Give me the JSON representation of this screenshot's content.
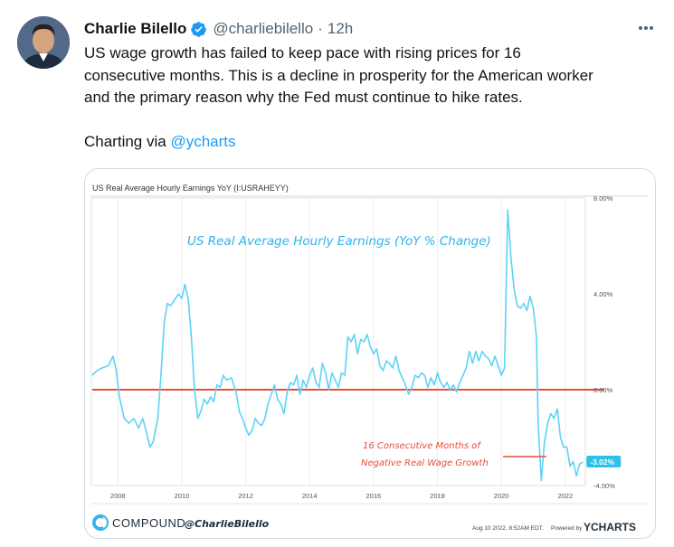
{
  "author": {
    "name": "Charlie Bilello",
    "handle": "@charliebilello",
    "separator": "·",
    "time": "12h"
  },
  "tweet": {
    "lines": [
      "US wage growth has failed to keep pace with rising prices for 16",
      "consecutive months. This is a decline in prosperity for the American worker",
      "and the primary reason why the Fed must continue to hike rates."
    ],
    "via_prefix": "Charting via ",
    "via_mention": "@ycharts"
  },
  "chart_data": {
    "type": "line",
    "header": "US Real Average Hourly Earnings YoY (I:USRAHEYY)",
    "title": "US Real Average Hourly Earnings (YoY % Change)",
    "annotation_line1": "16 Consecutive Months of",
    "annotation_line2": "Negative Real Wage Growth",
    "latest_value_label": "-3.02%",
    "x_tick_labels": [
      "2008",
      "2010",
      "2012",
      "2014",
      "2016",
      "2018",
      "2020",
      "2022"
    ],
    "y_tick_labels": [
      "8.00%",
      "4.00%",
      "0.00%",
      "-4.00%"
    ],
    "y_ticks": [
      8,
      4,
      0,
      -4
    ],
    "xlim": [
      2007.2,
      2022.6
    ],
    "ylim": [
      -4.0,
      8.0
    ],
    "series": [
      {
        "values": [
          [
            2007.2,
            0.6
          ],
          [
            2007.35,
            0.8
          ],
          [
            2007.5,
            0.9
          ],
          [
            2007.7,
            1.0
          ],
          [
            2007.85,
            1.4
          ],
          [
            2007.95,
            0.8
          ],
          [
            2008.05,
            -0.3
          ],
          [
            2008.2,
            -1.2
          ],
          [
            2008.35,
            -1.4
          ],
          [
            2008.5,
            -1.2
          ],
          [
            2008.65,
            -1.6
          ],
          [
            2008.78,
            -1.2
          ],
          [
            2008.9,
            -1.8
          ],
          [
            2009.0,
            -2.4
          ],
          [
            2009.1,
            -2.2
          ],
          [
            2009.25,
            -1.2
          ],
          [
            2009.35,
            0.6
          ],
          [
            2009.45,
            2.8
          ],
          [
            2009.55,
            3.6
          ],
          [
            2009.65,
            3.5
          ],
          [
            2009.75,
            3.7
          ],
          [
            2009.9,
            4.0
          ],
          [
            2010.0,
            3.8
          ],
          [
            2010.1,
            4.4
          ],
          [
            2010.2,
            3.8
          ],
          [
            2010.3,
            2.2
          ],
          [
            2010.4,
            0.0
          ],
          [
            2010.5,
            -1.2
          ],
          [
            2010.6,
            -0.9
          ],
          [
            2010.7,
            -0.4
          ],
          [
            2010.8,
            -0.6
          ],
          [
            2010.9,
            -0.3
          ],
          [
            2011.0,
            -0.5
          ],
          [
            2011.1,
            0.2
          ],
          [
            2011.2,
            0.1
          ],
          [
            2011.3,
            0.6
          ],
          [
            2011.4,
            0.4
          ],
          [
            2011.55,
            0.5
          ],
          [
            2011.7,
            -0.1
          ],
          [
            2011.8,
            -0.9
          ],
          [
            2011.9,
            -1.2
          ],
          [
            2012.0,
            -1.6
          ],
          [
            2012.1,
            -1.9
          ],
          [
            2012.2,
            -1.7
          ],
          [
            2012.3,
            -1.2
          ],
          [
            2012.4,
            -1.4
          ],
          [
            2012.5,
            -1.5
          ],
          [
            2012.6,
            -1.2
          ],
          [
            2012.7,
            -0.6
          ],
          [
            2012.8,
            -0.2
          ],
          [
            2012.9,
            0.2
          ],
          [
            2013.0,
            -0.4
          ],
          [
            2013.1,
            -0.6
          ],
          [
            2013.2,
            -1.0
          ],
          [
            2013.3,
            -0.1
          ],
          [
            2013.4,
            0.3
          ],
          [
            2013.5,
            0.2
          ],
          [
            2013.6,
            0.6
          ],
          [
            2013.7,
            -0.2
          ],
          [
            2013.8,
            0.4
          ],
          [
            2013.9,
            0.1
          ],
          [
            2014.0,
            0.6
          ],
          [
            2014.1,
            0.9
          ],
          [
            2014.2,
            0.3
          ],
          [
            2014.3,
            0.1
          ],
          [
            2014.4,
            1.1
          ],
          [
            2014.5,
            0.7
          ],
          [
            2014.6,
            0.0
          ],
          [
            2014.7,
            0.7
          ],
          [
            2014.8,
            0.4
          ],
          [
            2014.9,
            0.1
          ],
          [
            2015.0,
            0.7
          ],
          [
            2015.1,
            0.6
          ],
          [
            2015.2,
            2.2
          ],
          [
            2015.3,
            2.0
          ],
          [
            2015.4,
            2.3
          ],
          [
            2015.5,
            1.5
          ],
          [
            2015.6,
            2.1
          ],
          [
            2015.7,
            2.0
          ],
          [
            2015.8,
            2.3
          ],
          [
            2015.9,
            1.8
          ],
          [
            2016.0,
            1.5
          ],
          [
            2016.1,
            1.7
          ],
          [
            2016.2,
            1.0
          ],
          [
            2016.3,
            0.8
          ],
          [
            2016.4,
            1.2
          ],
          [
            2016.5,
            1.1
          ],
          [
            2016.6,
            0.9
          ],
          [
            2016.7,
            1.4
          ],
          [
            2016.8,
            0.8
          ],
          [
            2016.9,
            0.5
          ],
          [
            2017.0,
            0.2
          ],
          [
            2017.1,
            -0.2
          ],
          [
            2017.2,
            0.1
          ],
          [
            2017.3,
            0.6
          ],
          [
            2017.4,
            0.5
          ],
          [
            2017.5,
            0.7
          ],
          [
            2017.6,
            0.6
          ],
          [
            2017.7,
            0.1
          ],
          [
            2017.8,
            0.5
          ],
          [
            2017.9,
            0.2
          ],
          [
            2018.0,
            0.7
          ],
          [
            2018.1,
            0.3
          ],
          [
            2018.2,
            0.1
          ],
          [
            2018.3,
            0.3
          ],
          [
            2018.4,
            0.0
          ],
          [
            2018.5,
            0.2
          ],
          [
            2018.6,
            -0.1
          ],
          [
            2018.7,
            0.3
          ],
          [
            2018.8,
            0.6
          ],
          [
            2018.9,
            0.9
          ],
          [
            2019.0,
            1.6
          ],
          [
            2019.1,
            1.1
          ],
          [
            2019.2,
            1.6
          ],
          [
            2019.3,
            1.2
          ],
          [
            2019.4,
            1.6
          ],
          [
            2019.5,
            1.4
          ],
          [
            2019.6,
            1.3
          ],
          [
            2019.7,
            1.0
          ],
          [
            2019.8,
            1.4
          ],
          [
            2019.9,
            1.0
          ],
          [
            2020.0,
            0.6
          ],
          [
            2020.1,
            0.9
          ],
          [
            2020.2,
            7.5
          ],
          [
            2020.3,
            5.5
          ],
          [
            2020.4,
            4.2
          ],
          [
            2020.5,
            3.5
          ],
          [
            2020.6,
            3.4
          ],
          [
            2020.7,
            3.6
          ],
          [
            2020.8,
            3.3
          ],
          [
            2020.9,
            3.9
          ],
          [
            2021.0,
            3.4
          ],
          [
            2021.1,
            2.2
          ],
          [
            2021.15,
            -1.4
          ],
          [
            2021.25,
            -3.8
          ],
          [
            2021.35,
            -2.2
          ],
          [
            2021.45,
            -1.4
          ],
          [
            2021.55,
            -1.0
          ],
          [
            2021.65,
            -1.2
          ],
          [
            2021.75,
            -0.8
          ],
          [
            2021.85,
            -2.0
          ],
          [
            2021.95,
            -2.4
          ],
          [
            2022.05,
            -2.4
          ],
          [
            2022.15,
            -3.2
          ],
          [
            2022.25,
            -3.0
          ],
          [
            2022.35,
            -3.6
          ],
          [
            2022.45,
            -3.1
          ],
          [
            2022.55,
            -3.02
          ]
        ]
      }
    ],
    "threshold": 0,
    "highlight_start": 2021.15
  },
  "footer": {
    "brand": "COMPOUND",
    "brand_handle": "@CharlieBilello",
    "timestamp": "Aug 10 2022, 8:52AM EDT.",
    "powered_by": "Powered by",
    "powered_brand": "YCHARTS"
  },
  "colors": {
    "line": "#5dd3f5",
    "zero_line": "#e74c3c",
    "annotation": "#e74c3c",
    "title": "#2fb3e8",
    "mention": "#1d9bf0"
  }
}
